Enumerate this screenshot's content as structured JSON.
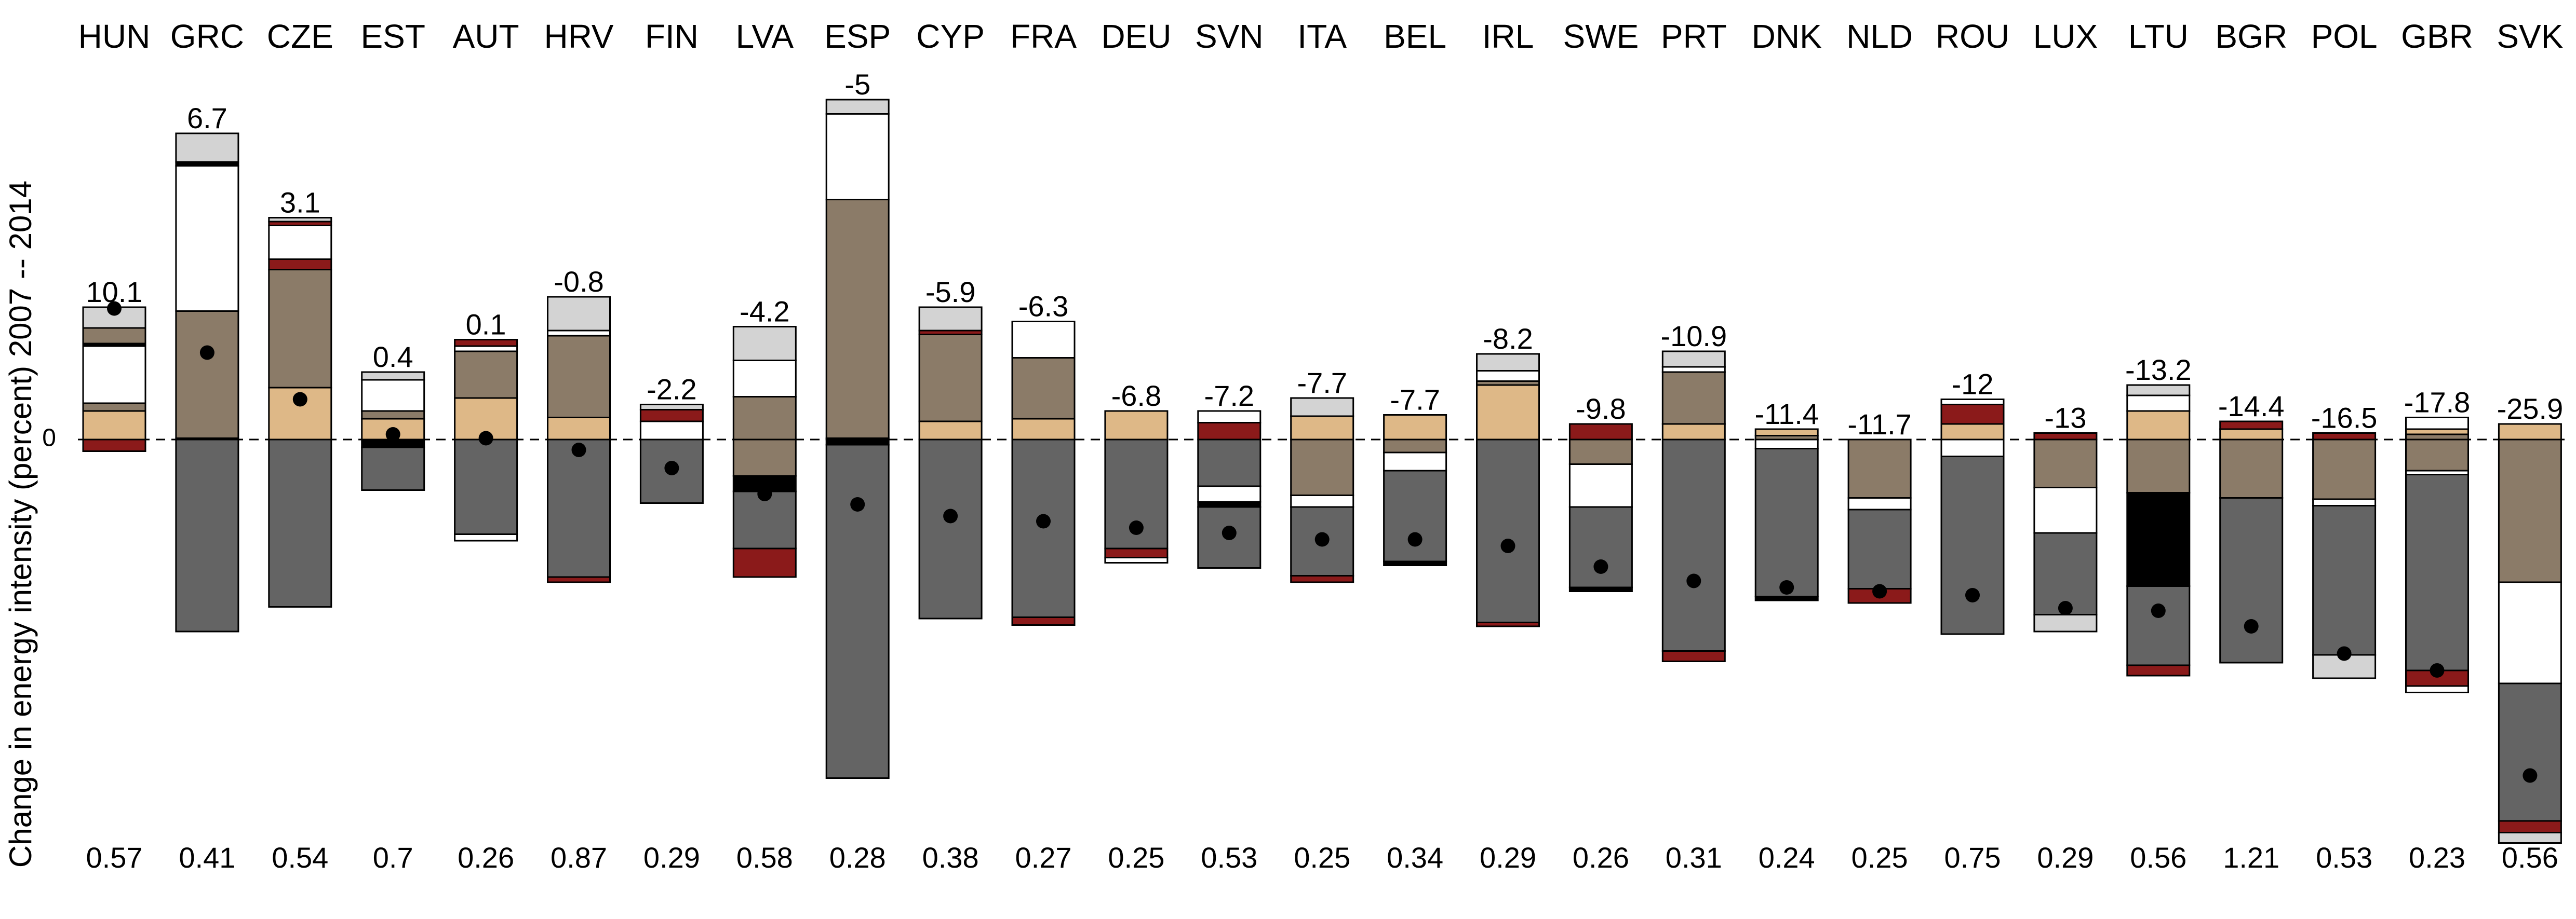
{
  "chart_data": {
    "type": "bar",
    "subtype": "stacked-decomposition",
    "ylabel": "Change in energy intensity (percent) 2007 -- 2014",
    "zero_label": "0",
    "reference_line": "dashed at 0",
    "grid": false,
    "legend": "none",
    "categories": [
      "HUN",
      "GRC",
      "CZE",
      "EST",
      "AUT",
      "HRV",
      "FIN",
      "LVA",
      "ESP",
      "CYP",
      "FRA",
      "DEU",
      "SVN",
      "ITA",
      "BEL",
      "IRL",
      "SWE",
      "PRT",
      "DNK",
      "NLD",
      "ROU",
      "LUX",
      "LTU",
      "BGR",
      "POL",
      "GBR",
      "SVK"
    ],
    "totals": [
      "10.1",
      "6.7",
      "3.1",
      "0.4",
      "0.1",
      "-0.8",
      "-2.2",
      "-4.2",
      "-5",
      "-5.9",
      "-6.3",
      "-6.8",
      "-7.2",
      "-7.7",
      "-7.7",
      "-8.2",
      "-9.8",
      "-10.9",
      "-11.4",
      "-11.7",
      "-12",
      "-13",
      "-13.2",
      "-14.4",
      "-16.5",
      "-17.8",
      "-25.9"
    ],
    "bottom_values": [
      "0.57",
      "0.41",
      "0.54",
      "0.7",
      "0.26",
      "0.87",
      "0.29",
      "0.58",
      "0.28",
      "0.38",
      "0.27",
      "0.25",
      "0.53",
      "0.25",
      "0.34",
      "0.29",
      "0.26",
      "0.31",
      "0.24",
      "0.25",
      "0.75",
      "0.29",
      "0.56",
      "1.21",
      "0.53",
      "0.23",
      "0.56"
    ],
    "component_colors": {
      "lightgray": "#d3d3d3",
      "white": "#ffffff",
      "black": "#000000",
      "darkred": "#8b1a1a",
      "brown": "#8b7b68",
      "tan": "#deb887",
      "darkgray": "#646464"
    },
    "ylim": [
      -30,
      27
    ],
    "series": [
      {
        "key": "lightgray",
        "values": [
          0,
          0,
          0,
          0,
          0,
          0,
          0,
          0,
          0,
          0,
          0,
          0,
          0,
          0,
          0,
          0,
          0,
          0,
          0,
          0,
          0,
          0,
          0,
          0,
          0,
          0,
          0
        ]
      },
      {
        "key": "white",
        "values": [
          0,
          0,
          0,
          0,
          0,
          0,
          0,
          0,
          0,
          0,
          0,
          0,
          0,
          0,
          0,
          0,
          0,
          0,
          0,
          0,
          0,
          0,
          0,
          0,
          0,
          0,
          0
        ]
      },
      {
        "key": "black",
        "values": [
          0,
          0,
          0,
          0,
          0,
          0,
          0,
          0,
          0,
          0,
          0,
          0,
          0,
          0,
          0,
          0,
          0,
          0,
          0,
          0,
          0,
          0,
          0,
          0,
          0,
          0,
          0
        ]
      },
      {
        "key": "darkred",
        "values": [
          0,
          0,
          0,
          0,
          0,
          0,
          0,
          0,
          0,
          0,
          0,
          0,
          0,
          0,
          0,
          0,
          0,
          0,
          0,
          0,
          0,
          0,
          0,
          0,
          0,
          0,
          0
        ]
      },
      {
        "key": "brown",
        "values": [
          0,
          0,
          0,
          0,
          0,
          0,
          0,
          0,
          0,
          0,
          0,
          0,
          0,
          0,
          0,
          0,
          0,
          0,
          0,
          0,
          0,
          0,
          0,
          0,
          0,
          0,
          0
        ]
      },
      {
        "key": "tan",
        "values": [
          0,
          0,
          0,
          0,
          0,
          0,
          0,
          0,
          0,
          0,
          0,
          0,
          0,
          0,
          0,
          0,
          0,
          0,
          0,
          0,
          0,
          0,
          0,
          0,
          0,
          0,
          0
        ]
      },
      {
        "key": "darkgray",
        "values": [
          0,
          0,
          0,
          0,
          0,
          0,
          0,
          0,
          0,
          0,
          0,
          0,
          0,
          0,
          0,
          0,
          0,
          0,
          0,
          0,
          0,
          0,
          0,
          0,
          0,
          0,
          0
        ]
      }
    ],
    "stacks": [
      {
        "pos": [
          [
            "tan",
            2.2
          ],
          [
            "brown",
            0.6
          ],
          [
            "white",
            4.4
          ],
          [
            "black",
            0.2
          ],
          [
            "brown",
            1.2
          ],
          [
            "lightgray",
            1.6
          ]
        ],
        "neg": [
          [
            "darkred",
            0.9
          ]
        ],
        "dot": 10.1
      },
      {
        "pos": [
          [
            "tan",
            0.1
          ],
          [
            "brown",
            9.8
          ],
          [
            "white",
            11.2
          ],
          [
            "black",
            0.3
          ],
          [
            "lightgray",
            2.2
          ]
        ],
        "neg": [
          [
            "darkgray",
            14.8
          ]
        ],
        "dot": 6.7
      },
      {
        "pos": [
          [
            "tan",
            4.0
          ],
          [
            "brown",
            9.1
          ],
          [
            "darkred",
            0.8
          ],
          [
            "white",
            2.6
          ],
          [
            "darkred",
            0.3
          ],
          [
            "lightgray",
            0.3
          ]
        ],
        "neg": [
          [
            "darkgray",
            12.9
          ]
        ],
        "dot": 3.1
      },
      {
        "pos": [
          [
            "tan",
            1.6
          ],
          [
            "brown",
            0.6
          ],
          [
            "white",
            2.4
          ],
          [
            "lightgray",
            0.6
          ]
        ],
        "neg": [
          [
            "black",
            0.6
          ],
          [
            "darkgray",
            3.3
          ]
        ],
        "dot": 0.4
      },
      {
        "pos": [
          [
            "tan",
            3.2
          ],
          [
            "brown",
            3.6
          ],
          [
            "white",
            0.4
          ],
          [
            "darkred",
            0.5
          ]
        ],
        "neg": [
          [
            "darkgray",
            7.3
          ],
          [
            "white",
            0.5
          ]
        ],
        "dot": 0.1
      },
      {
        "pos": [
          [
            "tan",
            1.7
          ],
          [
            "brown",
            6.3
          ],
          [
            "white",
            0.4
          ],
          [
            "lightgray",
            2.6
          ]
        ],
        "neg": [
          [
            "darkgray",
            10.6
          ],
          [
            "darkred",
            0.4
          ]
        ],
        "dot": -0.8
      },
      {
        "pos": [
          [
            "white",
            1.4
          ],
          [
            "darkred",
            0.9
          ],
          [
            "lightgray",
            0.4
          ]
        ],
        "neg": [
          [
            "darkgray",
            4.9
          ]
        ],
        "dot": -2.2
      },
      {
        "pos": [
          [
            "brown",
            3.3
          ],
          [
            "white",
            2.8
          ],
          [
            "lightgray",
            2.6
          ]
        ],
        "neg": [
          [
            "brown",
            2.8
          ],
          [
            "black",
            1.2
          ],
          [
            "darkgray",
            4.4
          ],
          [
            "darkred",
            2.2
          ]
        ],
        "dot": -4.2
      },
      {
        "pos": [
          [
            "tan",
            0.1
          ],
          [
            "brown",
            18.4
          ],
          [
            "white",
            6.6
          ],
          [
            "lightgray",
            1.1
          ]
        ],
        "neg": [
          [
            "black",
            0.4
          ],
          [
            "darkgray",
            25.7
          ]
        ],
        "dot": -5
      },
      {
        "pos": [
          [
            "tan",
            1.4
          ],
          [
            "brown",
            6.7
          ],
          [
            "darkred",
            0.3
          ],
          [
            "lightgray",
            1.8
          ]
        ],
        "neg": [
          [
            "darkgray",
            13.8
          ]
        ],
        "dot": -5.9
      },
      {
        "pos": [
          [
            "tan",
            1.6
          ],
          [
            "brown",
            4.7
          ],
          [
            "white",
            2.8
          ]
        ],
        "neg": [
          [
            "darkgray",
            13.7
          ],
          [
            "darkred",
            0.6
          ]
        ],
        "dot": -6.3
      },
      {
        "pos": [
          [
            "tan",
            2.2
          ]
        ],
        "neg": [
          [
            "darkgray",
            8.4
          ],
          [
            "darkred",
            0.7
          ],
          [
            "white",
            0.4
          ]
        ],
        "dot": -6.8
      },
      {
        "pos": [
          [
            "darkred",
            1.3
          ],
          [
            "white",
            0.9
          ]
        ],
        "neg": [
          [
            "darkgray",
            3.6
          ],
          [
            "white",
            1.2
          ],
          [
            "black",
            0.4
          ],
          [
            "darkgray",
            4.7
          ]
        ],
        "dot": -7.2
      },
      {
        "pos": [
          [
            "tan",
            1.8
          ],
          [
            "lightgray",
            1.4
          ]
        ],
        "neg": [
          [
            "brown",
            4.3
          ],
          [
            "white",
            0.9
          ],
          [
            "darkgray",
            5.3
          ],
          [
            "darkred",
            0.5
          ]
        ],
        "dot": -7.7
      },
      {
        "pos": [
          [
            "tan",
            1.9
          ]
        ],
        "neg": [
          [
            "brown",
            1.0
          ],
          [
            "white",
            1.4
          ],
          [
            "darkgray",
            7.0
          ],
          [
            "black",
            0.3
          ]
        ],
        "dot": -7.7
      },
      {
        "pos": [
          [
            "tan",
            4.2
          ],
          [
            "brown",
            0.3
          ],
          [
            "white",
            0.8
          ],
          [
            "lightgray",
            1.3
          ]
        ],
        "neg": [
          [
            "darkgray",
            14.1
          ],
          [
            "darkred",
            0.3
          ]
        ],
        "dot": -8.2
      },
      {
        "pos": [
          [
            "darkred",
            1.2
          ]
        ],
        "neg": [
          [
            "brown",
            1.9
          ],
          [
            "white",
            3.3
          ],
          [
            "darkgray",
            6.2
          ],
          [
            "black",
            0.3
          ]
        ],
        "dot": -9.8
      },
      {
        "pos": [
          [
            "tan",
            1.2
          ],
          [
            "brown",
            4.0
          ],
          [
            "white",
            0.4
          ],
          [
            "lightgray",
            1.2
          ]
        ],
        "neg": [
          [
            "darkgray",
            16.3
          ],
          [
            "darkred",
            0.8
          ]
        ],
        "dot": -10.9
      },
      {
        "pos": [
          [
            "brown",
            0.3
          ],
          [
            "tan",
            0.5
          ]
        ],
        "neg": [
          [
            "white",
            0.7
          ],
          [
            "darkgray",
            11.4
          ],
          [
            "black",
            0.3
          ]
        ],
        "dot": -11.4
      },
      {
        "pos": [],
        "neg": [
          [
            "brown",
            4.5
          ],
          [
            "white",
            0.9
          ],
          [
            "darkgray",
            6.1
          ],
          [
            "darkred",
            1.1
          ]
        ],
        "dot": -11.7
      },
      {
        "pos": [
          [
            "tan",
            1.2
          ],
          [
            "darkred",
            1.5
          ],
          [
            "white",
            0.4
          ]
        ],
        "neg": [
          [
            "white",
            1.3
          ],
          [
            "darkgray",
            13.7
          ]
        ],
        "dot": -12
      },
      {
        "pos": [
          [
            "darkred",
            0.5
          ]
        ],
        "neg": [
          [
            "brown",
            3.7
          ],
          [
            "white",
            3.5
          ],
          [
            "darkgray",
            6.3
          ],
          [
            "lightgray",
            1.3
          ]
        ],
        "dot": -13
      },
      {
        "pos": [
          [
            "tan",
            2.2
          ],
          [
            "white",
            1.2
          ],
          [
            "lightgray",
            0.8
          ]
        ],
        "neg": [
          [
            "brown",
            4.1
          ],
          [
            "black",
            7.2
          ],
          [
            "darkgray",
            6.1
          ],
          [
            "darkred",
            0.8
          ]
        ],
        "dot": -13.2
      },
      {
        "pos": [
          [
            "tan",
            0.8
          ],
          [
            "darkred",
            0.6
          ]
        ],
        "neg": [
          [
            "brown",
            4.5
          ],
          [
            "darkgray",
            12.7
          ]
        ],
        "dot": -14.4
      },
      {
        "pos": [
          [
            "darkred",
            0.5
          ]
        ],
        "neg": [
          [
            "brown",
            4.6
          ],
          [
            "white",
            0.5
          ],
          [
            "darkgray",
            11.5
          ],
          [
            "lightgray",
            1.8
          ]
        ],
        "dot": -16.5
      },
      {
        "pos": [
          [
            "brown",
            0.4
          ],
          [
            "tan",
            0.4
          ],
          [
            "white",
            0.9
          ]
        ],
        "neg": [
          [
            "brown",
            2.4
          ],
          [
            "white",
            0.3
          ],
          [
            "darkgray",
            15.1
          ],
          [
            "darkred",
            1.2
          ],
          [
            "white",
            0.5
          ]
        ],
        "dot": -17.8
      },
      {
        "pos": [
          [
            "tan",
            1.2
          ]
        ],
        "neg": [
          [
            "brown",
            11.0
          ],
          [
            "white",
            7.8
          ],
          [
            "darkgray",
            10.6
          ],
          [
            "darkred",
            0.9
          ],
          [
            "lightgray",
            0.8
          ]
        ],
        "dot": -25.9
      }
    ]
  }
}
